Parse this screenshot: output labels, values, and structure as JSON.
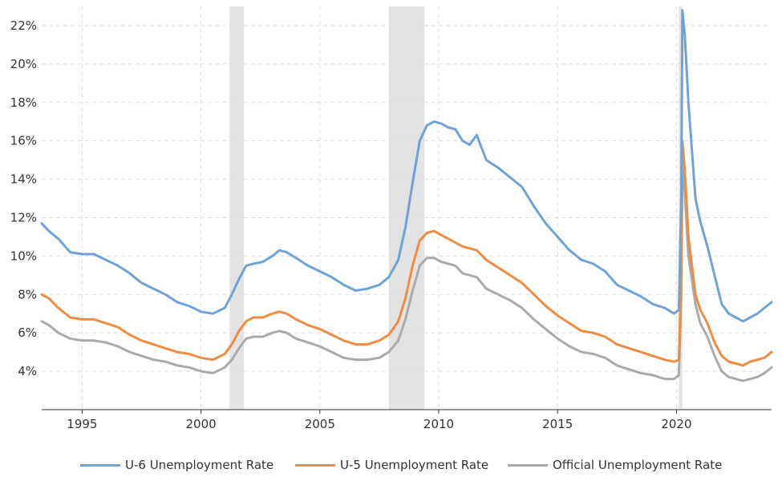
{
  "chart_data": {
    "type": "line",
    "title": "",
    "xlabel": "",
    "ylabel": "",
    "xlim": [
      1993.3,
      2024.0
    ],
    "ylim": [
      2.0,
      23.0
    ],
    "y_ticks": [
      4,
      6,
      8,
      10,
      12,
      14,
      16,
      18,
      20,
      22
    ],
    "y_tick_labels": [
      "4%",
      "6%",
      "8%",
      "10%",
      "12%",
      "14%",
      "16%",
      "18%",
      "20%",
      "22%"
    ],
    "x_ticks": [
      1995,
      2000,
      2005,
      2010,
      2015,
      2020
    ],
    "x_tick_labels": [
      "1995",
      "2000",
      "2005",
      "2010",
      "2015",
      "2020"
    ],
    "grid": true,
    "legend_position": "bottom",
    "recessions": [
      [
        2001.2,
        2001.8
      ],
      [
        2007.9,
        2009.4
      ],
      [
        2020.1,
        2020.25
      ]
    ],
    "series": [
      {
        "name": "U-6 Unemployment Rate",
        "color": "#6fa3d6",
        "x": [
          1993.3,
          1993.6,
          1994.0,
          1994.5,
          1995.0,
          1995.5,
          1996.0,
          1996.5,
          1997.0,
          1997.5,
          1998.0,
          1998.5,
          1999.0,
          1999.5,
          2000.0,
          2000.5,
          2001.0,
          2001.3,
          2001.6,
          2001.9,
          2002.2,
          2002.6,
          2003.0,
          2003.3,
          2003.6,
          2004.0,
          2004.5,
          2005.0,
          2005.5,
          2006.0,
          2006.5,
          2007.0,
          2007.5,
          2007.9,
          2008.3,
          2008.6,
          2008.9,
          2009.2,
          2009.5,
          2009.8,
          2010.1,
          2010.4,
          2010.7,
          2011.0,
          2011.3,
          2011.6,
          2012.0,
          2012.5,
          2013.0,
          2013.5,
          2014.0,
          2014.5,
          2015.0,
          2015.5,
          2016.0,
          2016.5,
          2017.0,
          2017.5,
          2018.0,
          2018.5,
          2019.0,
          2019.5,
          2019.9,
          2020.1,
          2020.2,
          2020.25,
          2020.35,
          2020.5,
          2020.8,
          2021.0,
          2021.3,
          2021.6,
          2021.9,
          2022.2,
          2022.5,
          2022.8,
          2023.1,
          2023.4,
          2023.7,
          2024.0
        ],
        "values": [
          11.7,
          11.3,
          10.9,
          10.2,
          10.1,
          10.1,
          9.8,
          9.5,
          9.1,
          8.6,
          8.3,
          8.0,
          7.6,
          7.4,
          7.1,
          7.0,
          7.3,
          8.0,
          8.8,
          9.5,
          9.6,
          9.7,
          10.0,
          10.3,
          10.2,
          9.9,
          9.5,
          9.2,
          8.9,
          8.5,
          8.2,
          8.3,
          8.5,
          8.9,
          9.8,
          11.5,
          13.8,
          16.0,
          16.8,
          17.0,
          16.9,
          16.7,
          16.6,
          16.0,
          15.8,
          16.3,
          15.0,
          14.6,
          14.1,
          13.6,
          12.6,
          11.7,
          11.0,
          10.3,
          9.8,
          9.6,
          9.2,
          8.5,
          8.2,
          7.9,
          7.5,
          7.3,
          7.0,
          7.2,
          13.0,
          22.8,
          21.5,
          18.0,
          13.0,
          11.8,
          10.5,
          9.0,
          7.5,
          7.0,
          6.8,
          6.6,
          6.8,
          7.0,
          7.3,
          7.6
        ]
      },
      {
        "name": "U-5 Unemployment Rate",
        "color": "#f08c42",
        "x": [
          1993.3,
          1993.6,
          1994.0,
          1994.5,
          1995.0,
          1995.5,
          1996.0,
          1996.5,
          1997.0,
          1997.5,
          1998.0,
          1998.5,
          1999.0,
          1999.5,
          2000.0,
          2000.5,
          2001.0,
          2001.3,
          2001.6,
          2001.9,
          2002.2,
          2002.6,
          2003.0,
          2003.3,
          2003.6,
          2004.0,
          2004.5,
          2005.0,
          2005.5,
          2006.0,
          2006.5,
          2007.0,
          2007.5,
          2007.9,
          2008.3,
          2008.6,
          2008.9,
          2009.2,
          2009.5,
          2009.8,
          2010.1,
          2010.4,
          2010.7,
          2011.0,
          2011.3,
          2011.6,
          2012.0,
          2012.5,
          2013.0,
          2013.5,
          2014.0,
          2014.5,
          2015.0,
          2015.5,
          2016.0,
          2016.5,
          2017.0,
          2017.5,
          2018.0,
          2018.5,
          2019.0,
          2019.5,
          2019.9,
          2020.1,
          2020.2,
          2020.25,
          2020.35,
          2020.5,
          2020.8,
          2021.0,
          2021.3,
          2021.6,
          2021.9,
          2022.2,
          2022.5,
          2022.8,
          2023.1,
          2023.4,
          2023.7,
          2024.0
        ],
        "values": [
          8.0,
          7.8,
          7.3,
          6.8,
          6.7,
          6.7,
          6.5,
          6.3,
          5.9,
          5.6,
          5.4,
          5.2,
          5.0,
          4.9,
          4.7,
          4.6,
          4.9,
          5.4,
          6.1,
          6.6,
          6.8,
          6.8,
          7.0,
          7.1,
          7.0,
          6.7,
          6.4,
          6.2,
          5.9,
          5.6,
          5.4,
          5.4,
          5.6,
          5.9,
          6.6,
          7.8,
          9.5,
          10.8,
          11.2,
          11.3,
          11.1,
          10.9,
          10.7,
          10.5,
          10.4,
          10.3,
          9.8,
          9.4,
          9.0,
          8.6,
          8.0,
          7.4,
          6.9,
          6.5,
          6.1,
          6.0,
          5.8,
          5.4,
          5.2,
          5.0,
          4.8,
          4.6,
          4.5,
          4.6,
          9.0,
          16.0,
          14.5,
          11.0,
          8.0,
          7.2,
          6.5,
          5.5,
          4.8,
          4.5,
          4.4,
          4.3,
          4.5,
          4.6,
          4.7,
          5.0
        ]
      },
      {
        "name": "Official Unemployment Rate",
        "color": "#aaaaaa",
        "x": [
          1993.3,
          1993.6,
          1994.0,
          1994.5,
          1995.0,
          1995.5,
          1996.0,
          1996.5,
          1997.0,
          1997.5,
          1998.0,
          1998.5,
          1999.0,
          1999.5,
          2000.0,
          2000.5,
          2001.0,
          2001.3,
          2001.6,
          2001.9,
          2002.2,
          2002.6,
          2003.0,
          2003.3,
          2003.6,
          2004.0,
          2004.5,
          2005.0,
          2005.5,
          2006.0,
          2006.5,
          2007.0,
          2007.5,
          2007.9,
          2008.3,
          2008.6,
          2008.9,
          2009.2,
          2009.5,
          2009.8,
          2010.1,
          2010.4,
          2010.7,
          2011.0,
          2011.3,
          2011.6,
          2012.0,
          2012.5,
          2013.0,
          2013.5,
          2014.0,
          2014.5,
          2015.0,
          2015.5,
          2016.0,
          2016.5,
          2017.0,
          2017.5,
          2018.0,
          2018.5,
          2019.0,
          2019.5,
          2019.9,
          2020.1,
          2020.2,
          2020.25,
          2020.35,
          2020.5,
          2020.8,
          2021.0,
          2021.3,
          2021.6,
          2021.9,
          2022.2,
          2022.5,
          2022.8,
          2023.1,
          2023.4,
          2023.7,
          2024.0
        ],
        "values": [
          6.6,
          6.4,
          6.0,
          5.7,
          5.6,
          5.6,
          5.5,
          5.3,
          5.0,
          4.8,
          4.6,
          4.5,
          4.3,
          4.2,
          4.0,
          3.9,
          4.2,
          4.6,
          5.2,
          5.7,
          5.8,
          5.8,
          6.0,
          6.1,
          6.0,
          5.7,
          5.5,
          5.3,
          5.0,
          4.7,
          4.6,
          4.6,
          4.7,
          5.0,
          5.6,
          6.7,
          8.2,
          9.5,
          9.9,
          9.9,
          9.7,
          9.6,
          9.5,
          9.1,
          9.0,
          8.9,
          8.3,
          8.0,
          7.7,
          7.3,
          6.7,
          6.2,
          5.7,
          5.3,
          5.0,
          4.9,
          4.7,
          4.3,
          4.1,
          3.9,
          3.8,
          3.6,
          3.6,
          3.8,
          8.0,
          14.7,
          13.3,
          10.0,
          7.5,
          6.5,
          5.8,
          4.8,
          4.0,
          3.7,
          3.6,
          3.5,
          3.6,
          3.7,
          3.9,
          4.2
        ]
      }
    ]
  }
}
